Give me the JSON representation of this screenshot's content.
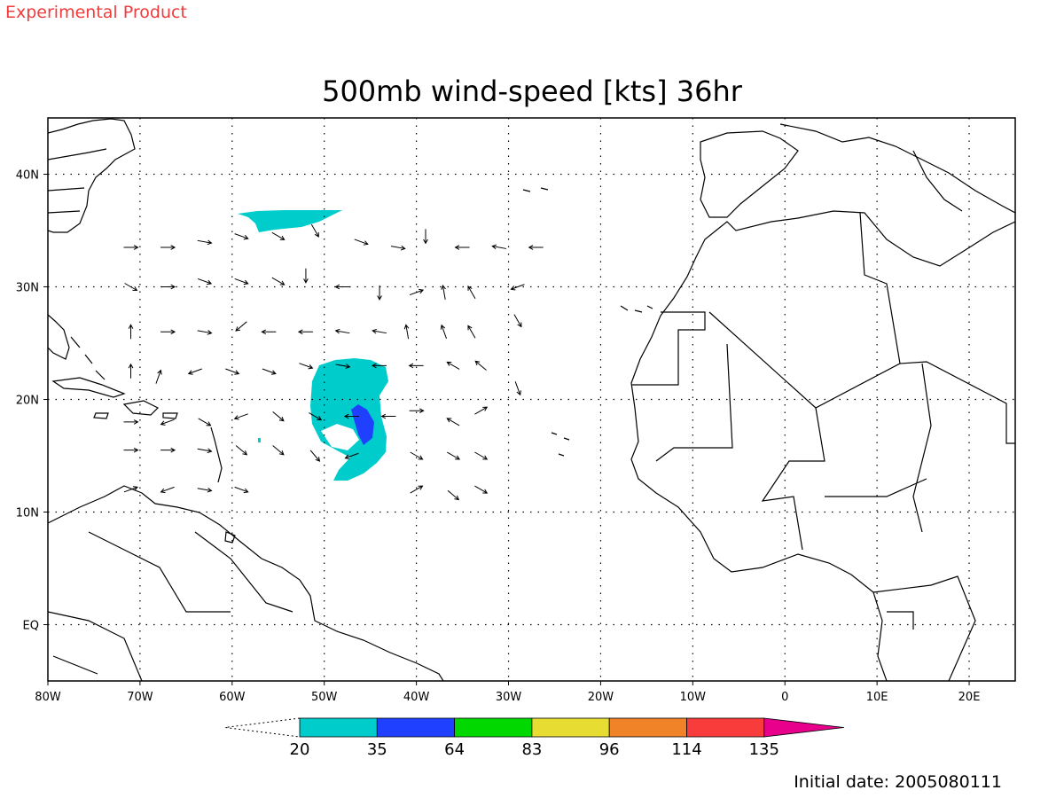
{
  "header": {
    "product_label": "Experimental Product",
    "title": "500mb wind-speed [kts] 36hr"
  },
  "map": {
    "lon_range": [
      -80,
      25
    ],
    "lat_range": [
      -5,
      45
    ],
    "lon_ticks": [
      {
        "value": -80,
        "label": "80W"
      },
      {
        "value": -70,
        "label": "70W"
      },
      {
        "value": -60,
        "label": "60W"
      },
      {
        "value": -50,
        "label": "50W"
      },
      {
        "value": -40,
        "label": "40W"
      },
      {
        "value": -30,
        "label": "30W"
      },
      {
        "value": -20,
        "label": "20W"
      },
      {
        "value": -10,
        "label": "10W"
      },
      {
        "value": 0,
        "label": "0"
      },
      {
        "value": 10,
        "label": "10E"
      },
      {
        "value": 20,
        "label": "20E"
      }
    ],
    "lat_ticks": [
      {
        "value": 40,
        "label": "40N"
      },
      {
        "value": 30,
        "label": "30N"
      },
      {
        "value": 20,
        "label": "20N"
      },
      {
        "value": 10,
        "label": "10N"
      },
      {
        "value": 0,
        "label": "EQ"
      }
    ],
    "grid": "dotted"
  },
  "colorbar": {
    "levels": [
      "20",
      "35",
      "64",
      "83",
      "96",
      "114",
      "135"
    ],
    "colors": [
      "#00cccc",
      "#2040ff",
      "#00d800",
      "#e6dc32",
      "#f08228",
      "#f83c3c",
      "#e8008c"
    ]
  },
  "footer": {
    "initial_date": "Initial date: 2005080111"
  }
}
